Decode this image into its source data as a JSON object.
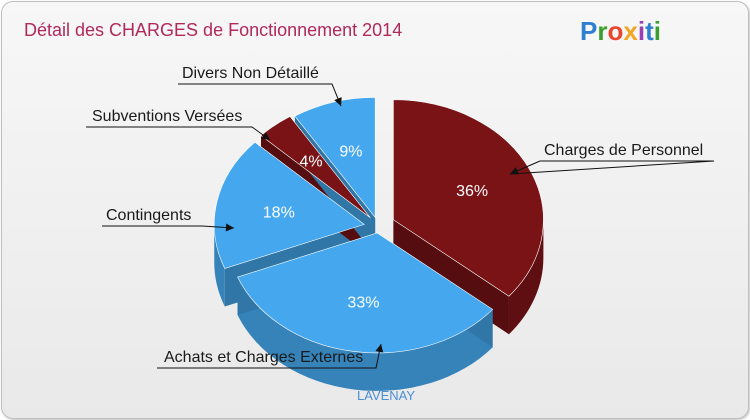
{
  "logo": {
    "text": "Proxiti",
    "letters": [
      "P",
      "r",
      "o",
      "x",
      "i",
      "t",
      "i"
    ],
    "colors": [
      "#2f7fd0",
      "#3a9f2e",
      "#e8452c",
      "#f2a623",
      "#9b3fb0",
      "#2f7fd0",
      "#3a9f2e"
    ]
  },
  "chart_data": {
    "type": "pie",
    "title": "Détail des CHARGES de Fonctionnement 2014",
    "subtitle": "LAVENAY",
    "slices": [
      {
        "label": "Charges de Personnel",
        "value": 36,
        "pct_label": "36%",
        "color": "#7a1316"
      },
      {
        "label": "Achats et Charges Externes",
        "value": 33,
        "pct_label": "33%",
        "color": "#45a8ee"
      },
      {
        "label": "Contingents",
        "value": 18,
        "pct_label": "18%",
        "color": "#45a8ee"
      },
      {
        "label": "Subventions Versées",
        "value": 4,
        "pct_label": "4%",
        "color": "#7a1316"
      },
      {
        "label": "Divers Non Détaillé",
        "value": 9,
        "pct_label": "9%",
        "color": "#45a8ee"
      }
    ]
  }
}
